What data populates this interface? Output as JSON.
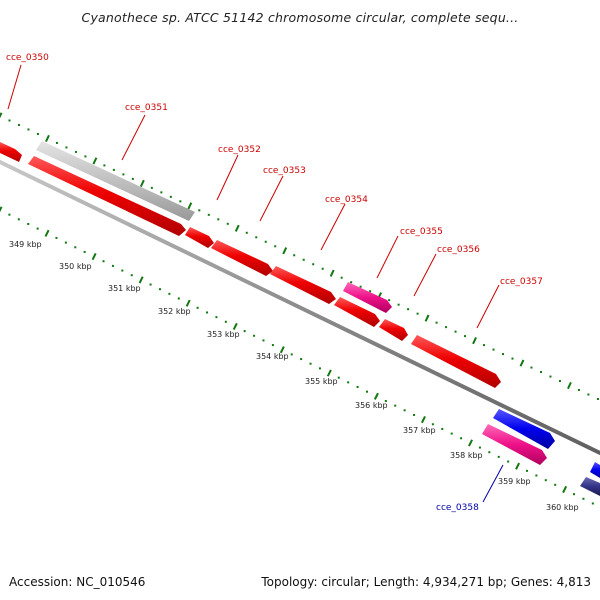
{
  "title": "Cyanothece sp. ATCC 51142 chromosome circular, complete sequ...",
  "footer": {
    "accession": "Accession: NC_010546",
    "summary": "Topology: circular; Length: 4,934,271 bp; Genes: 4,813"
  },
  "colors": {
    "cds_red": "#ee0000",
    "pseudo_gray": "#c0c0c0",
    "rna_pink": "#ee1188",
    "blue": "#0000ee",
    "navy": "#333388",
    "backbone": "#909090",
    "ruler_green": "#117711",
    "label_red": "#cc0000",
    "label_blue": "#0000aa"
  },
  "scale": {
    "ticks": [
      {
        "label": "349 kbp"
      },
      {
        "label": "350 kbp"
      },
      {
        "label": "351 kbp"
      },
      {
        "label": "352 kbp"
      },
      {
        "label": "353 kbp"
      },
      {
        "label": "354 kbp"
      },
      {
        "label": "355 kbp"
      },
      {
        "label": "356 kbp"
      },
      {
        "label": "357 kbp"
      },
      {
        "label": "358 kbp"
      },
      {
        "label": "359 kbp"
      },
      {
        "label": "360 kbp"
      }
    ]
  },
  "genes": [
    {
      "name": "cce_0350",
      "color": "label_red"
    },
    {
      "name": "cce_0351",
      "color": "label_red"
    },
    {
      "name": "cce_0352",
      "color": "label_red"
    },
    {
      "name": "cce_0353",
      "color": "label_red"
    },
    {
      "name": "cce_0354",
      "color": "label_red"
    },
    {
      "name": "cce_0355",
      "color": "label_red"
    },
    {
      "name": "cce_0356",
      "color": "label_red"
    },
    {
      "name": "cce_0357",
      "color": "label_red"
    },
    {
      "name": "cce_0358",
      "color": "label_blue"
    }
  ]
}
